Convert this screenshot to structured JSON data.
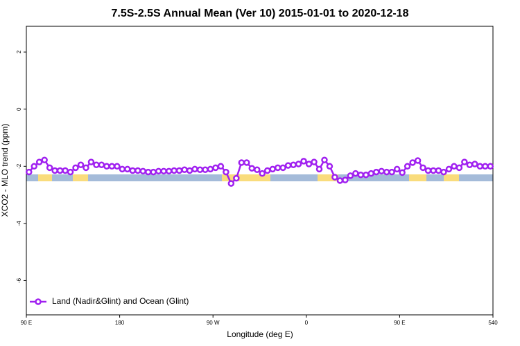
{
  "chart_data": {
    "type": "line",
    "title": "7.5S-2.5S Annual Mean (Ver 10)   2015-01-01 to 2020-12-18",
    "x_label": "Longitude (deg E)",
    "y_label": "XCO2 - MLO trend (ppm)",
    "x": [
      92.5,
      97.5,
      102.5,
      107.5,
      112.5,
      117.5,
      122.5,
      127.5,
      132.5,
      137.5,
      142.5,
      147.5,
      152.5,
      157.5,
      162.5,
      167.5,
      172.5,
      177.5,
      182.5,
      187.5,
      192.5,
      197.5,
      202.5,
      207.5,
      212.5,
      217.5,
      222.5,
      227.5,
      232.5,
      237.5,
      242.5,
      247.5,
      252.5,
      257.5,
      262.5,
      267.5,
      272.5,
      277.5,
      282.5,
      287.5,
      292.5,
      297.5,
      302.5,
      307.5,
      312.5,
      317.5,
      322.5,
      327.5,
      332.5,
      337.5,
      342.5,
      347.5,
      352.5,
      357.5,
      362.5,
      367.5,
      372.5,
      377.5,
      382.5,
      387.5,
      392.5,
      397.5,
      402.5,
      407.5,
      412.5,
      417.5,
      422.5,
      427.5,
      432.5,
      437.5,
      442.5,
      447.5,
      452.5,
      457.5,
      462.5,
      467.5,
      472.5,
      477.5,
      482.5,
      487.5,
      492.5,
      497.5,
      502.5,
      507.5,
      512.5,
      517.5,
      522.5,
      527.5,
      532.5,
      537.5
    ],
    "series": [
      {
        "name": "Land (Nadir&Glint) and Ocean (Glint)",
        "color": "#a020f0",
        "values": [
          -2.2,
          -2.0,
          -1.85,
          -1.78,
          -2.05,
          -2.15,
          -2.15,
          -2.15,
          -2.2,
          -2.05,
          -1.95,
          -2.05,
          -1.85,
          -1.95,
          -1.95,
          -2.0,
          -2.0,
          -2.0,
          -2.1,
          -2.1,
          -2.15,
          -2.15,
          -2.17,
          -2.2,
          -2.2,
          -2.17,
          -2.17,
          -2.17,
          -2.15,
          -2.15,
          -2.12,
          -2.15,
          -2.1,
          -2.12,
          -2.12,
          -2.1,
          -2.05,
          -2.0,
          -2.2,
          -2.6,
          -2.42,
          -1.87,
          -1.87,
          -2.07,
          -2.12,
          -2.25,
          -2.15,
          -2.1,
          -2.05,
          -2.05,
          -1.97,
          -1.95,
          -1.92,
          -1.82,
          -1.92,
          -1.85,
          -2.1,
          -1.78,
          -2.0,
          -2.38,
          -2.5,
          -2.48,
          -2.33,
          -2.25,
          -2.3,
          -2.3,
          -2.25,
          -2.2,
          -2.17,
          -2.2,
          -2.2,
          -2.1,
          -2.22,
          -2.0,
          -1.87,
          -1.8,
          -2.05,
          -2.15,
          -2.15,
          -2.15,
          -2.2,
          -2.1,
          -2.0,
          -2.05,
          -1.85,
          -1.95,
          -1.92,
          -2.0,
          -2.0,
          -2.0
        ]
      }
    ],
    "xlim": [
      90,
      540
    ],
    "xticks": [
      {
        "value": 90,
        "label": "90 E"
      },
      180,
      {
        "value": 270,
        "label": "90 W"
      },
      {
        "value": 360,
        "label": "0"
      },
      {
        "value": 450,
        "label": "90 E"
      },
      540
    ],
    "ylim": [
      -7.2,
      2.9
    ],
    "yticks": [
      -6,
      -4,
      -2,
      0,
      2
    ],
    "legend": "bottom-left"
  }
}
